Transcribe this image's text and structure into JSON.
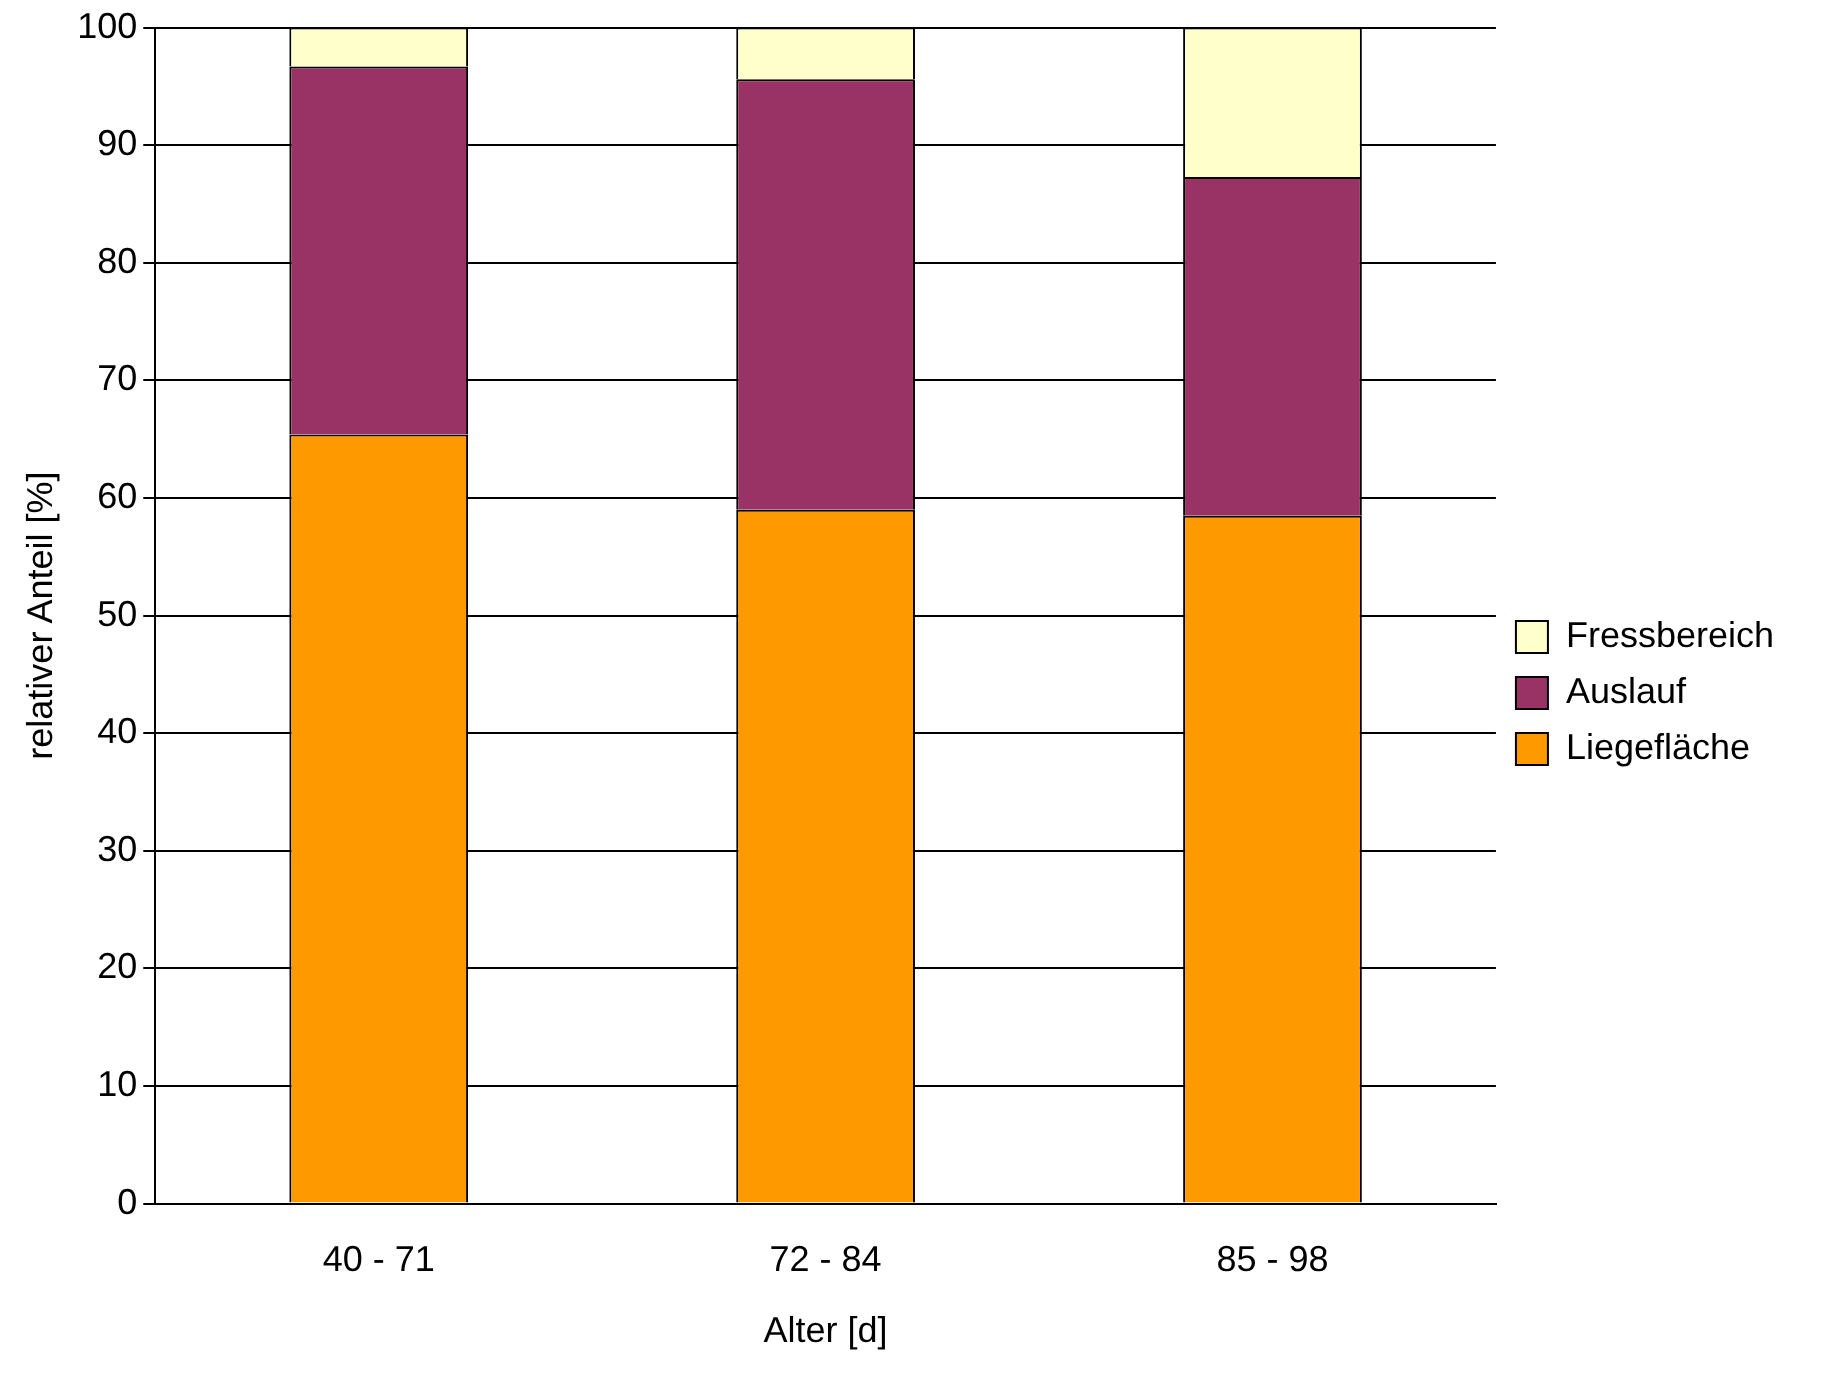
{
  "chart_data": {
    "type": "bar",
    "stacked": true,
    "xlabel": "Alter [d]",
    "ylabel": "relativer Anteil [%]",
    "categories": [
      "40 - 71",
      "72 - 84",
      "85 - 98"
    ],
    "series": [
      {
        "name": "Liegefläche",
        "color": "#ff9900",
        "values": [
          65.4,
          59.0,
          58.5
        ]
      },
      {
        "name": "Auslauf",
        "color": "#993366",
        "values": [
          31.3,
          36.6,
          28.8
        ]
      },
      {
        "name": "Fressbereich",
        "color": "#ffffcc",
        "values": [
          3.3,
          4.4,
          12.7
        ]
      }
    ],
    "ylim": [
      0,
      100
    ],
    "yticks": [
      0,
      10,
      20,
      30,
      40,
      50,
      60,
      70,
      80,
      90,
      100
    ],
    "grid": "y",
    "legend": "right"
  }
}
